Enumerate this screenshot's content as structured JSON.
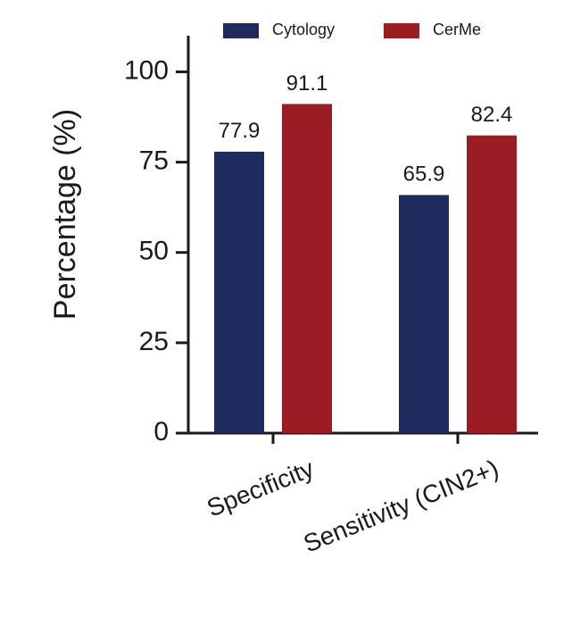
{
  "chart_data": {
    "type": "bar",
    "categories": [
      "Specificity",
      "Sensitivity (CIN2+)"
    ],
    "series": [
      {
        "name": "Cytology",
        "color": "#1f2b5c",
        "values": [
          77.9,
          65.9
        ]
      },
      {
        "name": "CerMe",
        "color": "#9a1d23",
        "values": [
          91.1,
          82.4
        ]
      }
    ],
    "y_label": "Percentage (%)",
    "ylim": [
      0,
      110
    ],
    "yticks": [
      0,
      25,
      50,
      75,
      100
    ],
    "legend": "top",
    "grid": false
  }
}
